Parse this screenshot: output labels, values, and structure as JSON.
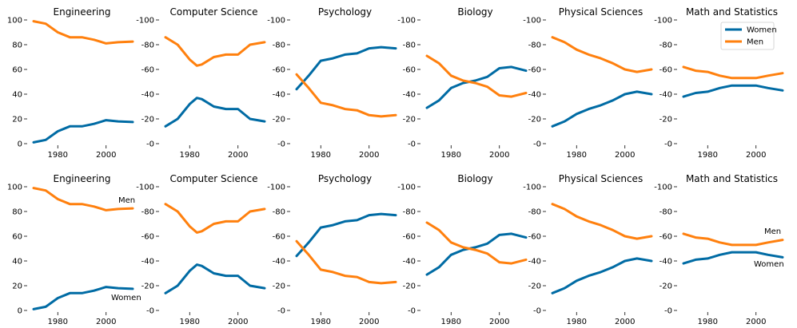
{
  "colors": {
    "women": "#006ba4",
    "men": "#ff800e"
  },
  "legend": {
    "women": "Women",
    "men": "Men"
  },
  "annotations": {
    "men": "Men",
    "women": "Women"
  },
  "chart_data": [
    {
      "type": "line",
      "row_layout": "two rows of six panels, same data repeated",
      "title": "Engineering",
      "x": [
        1970,
        1975,
        1980,
        1985,
        1990,
        1995,
        2000,
        2005,
        2011
      ],
      "xticks": [
        1980,
        2000
      ],
      "yticks": [
        0,
        20,
        40,
        60,
        80,
        100
      ],
      "ylim": [
        0,
        100
      ],
      "xlim": [
        1968,
        2012
      ],
      "series": [
        {
          "name": "Women",
          "values": [
            1,
            3,
            10,
            14,
            14,
            16,
            19,
            18,
            17.5
          ]
        },
        {
          "name": "Men",
          "values": [
            99,
            97,
            90,
            86,
            86,
            84,
            81,
            82,
            82.5
          ]
        }
      ]
    },
    {
      "type": "line",
      "title": "Computer Science",
      "x": [
        1970,
        1975,
        1980,
        1983,
        1985,
        1990,
        1995,
        2000,
        2005,
        2011
      ],
      "xticks": [
        1980,
        2000
      ],
      "yticks": [
        0,
        20,
        40,
        60,
        80,
        100
      ],
      "ylim": [
        0,
        100
      ],
      "xlim": [
        1968,
        2012
      ],
      "series": [
        {
          "name": "Women",
          "values": [
            14,
            20,
            32,
            37,
            36,
            30,
            28,
            28,
            20,
            18
          ]
        },
        {
          "name": "Men",
          "values": [
            86,
            80,
            68,
            63,
            64,
            70,
            72,
            72,
            80,
            82
          ]
        }
      ]
    },
    {
      "type": "line",
      "title": "Psychology",
      "x": [
        1970,
        1975,
        1980,
        1985,
        1990,
        1995,
        2000,
        2005,
        2011
      ],
      "xticks": [
        1980,
        2000
      ],
      "yticks": [
        0,
        20,
        40,
        60,
        80,
        100
      ],
      "ylim": [
        0,
        100
      ],
      "xlim": [
        1968,
        2012
      ],
      "series": [
        {
          "name": "Women",
          "values": [
            44,
            55,
            67,
            69,
            72,
            73,
            77,
            78,
            77
          ]
        },
        {
          "name": "Men",
          "values": [
            56,
            45,
            33,
            31,
            28,
            27,
            23,
            22,
            23
          ]
        }
      ]
    },
    {
      "type": "line",
      "title": "Biology",
      "x": [
        1970,
        1975,
        1980,
        1985,
        1990,
        1995,
        2000,
        2005,
        2011
      ],
      "xticks": [
        1980,
        2000
      ],
      "yticks": [
        0,
        20,
        40,
        60,
        80,
        100
      ],
      "ylim": [
        0,
        100
      ],
      "xlim": [
        1968,
        2012
      ],
      "series": [
        {
          "name": "Women",
          "values": [
            29,
            35,
            45,
            49,
            51,
            54,
            61,
            62,
            59
          ]
        },
        {
          "name": "Men",
          "values": [
            71,
            65,
            55,
            51,
            49,
            46,
            39,
            38,
            41
          ]
        }
      ]
    },
    {
      "type": "line",
      "title": "Physical Sciences",
      "x": [
        1970,
        1975,
        1980,
        1985,
        1990,
        1995,
        2000,
        2005,
        2011
      ],
      "xticks": [
        1980,
        2000
      ],
      "yticks": [
        0,
        20,
        40,
        60,
        80,
        100
      ],
      "ylim": [
        0,
        100
      ],
      "xlim": [
        1968,
        2012
      ],
      "series": [
        {
          "name": "Women",
          "values": [
            14,
            18,
            24,
            28,
            31,
            35,
            40,
            42,
            40
          ]
        },
        {
          "name": "Men",
          "values": [
            86,
            82,
            76,
            72,
            69,
            65,
            60,
            58,
            60
          ]
        }
      ]
    },
    {
      "type": "line",
      "title": "Math and Statistics",
      "x": [
        1970,
        1975,
        1980,
        1985,
        1990,
        1995,
        2000,
        2005,
        2011
      ],
      "xticks": [
        1980,
        2000
      ],
      "yticks": [
        0,
        20,
        40,
        60,
        80,
        100
      ],
      "ylim": [
        0,
        100
      ],
      "xlim": [
        1968,
        2012
      ],
      "series": [
        {
          "name": "Women",
          "values": [
            38,
            41,
            42,
            45,
            47,
            47,
            47,
            45,
            43
          ]
        },
        {
          "name": "Men",
          "values": [
            62,
            59,
            58,
            55,
            53,
            53,
            53,
            55,
            57
          ]
        }
      ]
    }
  ]
}
